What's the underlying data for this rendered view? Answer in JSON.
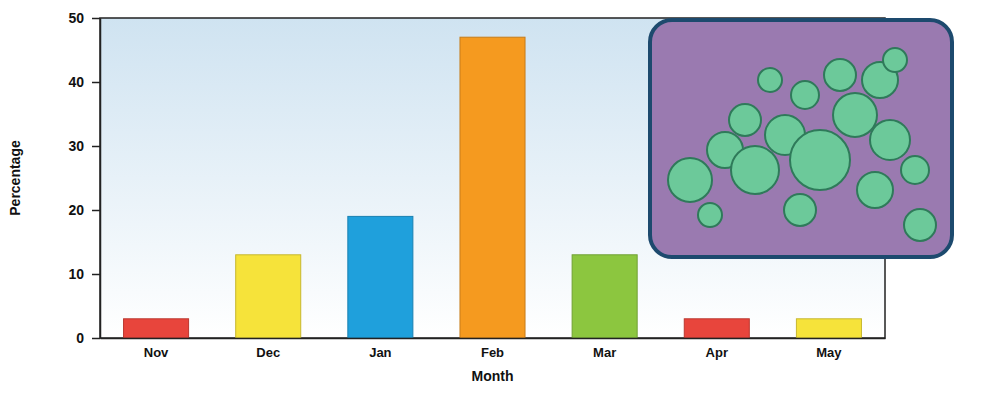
{
  "chart_data": {
    "type": "bar",
    "x_label": "Month",
    "y_label": "Percentage",
    "categories": [
      "Nov",
      "Dec",
      "Jan",
      "Feb",
      "Mar",
      "Apr",
      "May"
    ],
    "values": [
      3,
      13,
      19,
      47,
      13,
      3,
      3
    ],
    "colors": [
      "#e8453c",
      "#f6e33a",
      "#1fa0dc",
      "#f59a1f",
      "#8cc63f",
      "#e8453c",
      "#f6e33a"
    ],
    "ylim": [
      0,
      50
    ],
    "yticks": [
      0,
      10,
      20,
      30,
      40,
      50
    ],
    "grid": false
  }
}
